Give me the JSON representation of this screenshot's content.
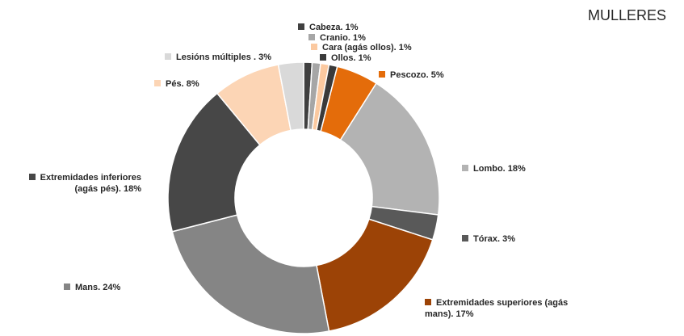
{
  "chart_data": {
    "type": "donut",
    "title": "MULLERES",
    "categories": [
      "Cabeza.",
      "Cranio.",
      "Cara (agás ollos).",
      "Ollos.",
      "Pescozo.",
      "Lombo.",
      "Tórax.",
      "Extremidades superiores (agás mans).",
      "Mans.",
      "Extremidades inferiores (agás pés).",
      "Pés.",
      "Lesións múltiples ."
    ],
    "values": [
      1,
      1,
      1,
      1,
      5,
      18,
      3,
      17,
      24,
      18,
      8,
      3
    ],
    "value_labels": [
      "1%",
      "1%",
      "1%",
      "1%",
      "5%",
      "18%",
      "3%",
      "17%",
      "24%",
      "18%",
      "8%",
      "3%"
    ],
    "colors": [
      "#404040",
      "#a6a6a6",
      "#fbc9a0",
      "#3a3a3a",
      "#e46c0a",
      "#b3b3b3",
      "#595959",
      "#9c4306",
      "#858585",
      "#474747",
      "#fcd5b5",
      "#d9d9d9"
    ]
  }
}
